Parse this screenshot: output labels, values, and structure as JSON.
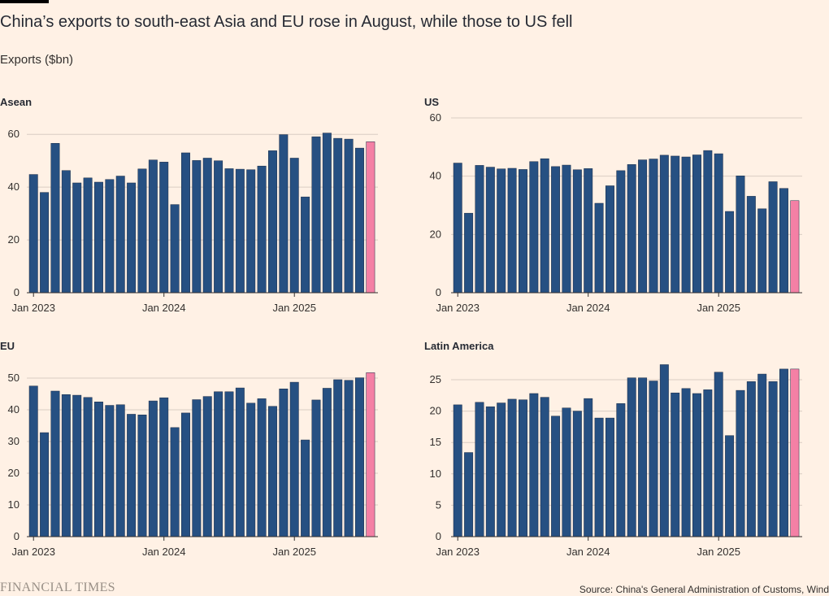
{
  "title": "China’s exports to south-east Asia and EU rose in August, while those to US fell",
  "subtitle": "Exports ($bn)",
  "brand": "FINANCIAL TIMES",
  "source": "Source: China's General Administration of Customs, Wind",
  "colors": {
    "bar": "#265082",
    "highlight": "#f480a5",
    "grid": "#d9cdc3",
    "axis": "#33302e",
    "text": "#33302e"
  },
  "chart_data": [
    {
      "type": "bar",
      "title": "Asean",
      "x_labels": [
        "Jan 2023",
        "Jan 2024",
        "Jan 2025"
      ],
      "yticks": [
        0,
        20,
        40,
        60
      ],
      "ylim": [
        0,
        61
      ],
      "highlight_last": true,
      "values": [
        44.8,
        38.0,
        56.6,
        46.3,
        41.6,
        43.5,
        41.9,
        42.9,
        44.2,
        41.6,
        46.9,
        50.3,
        49.5,
        33.4,
        53.0,
        50.1,
        51.0,
        50.0,
        47.0,
        46.8,
        46.6,
        48.0,
        53.8,
        59.9,
        51.0,
        36.3,
        59.1,
        60.5,
        58.5,
        58.2,
        54.8,
        57.2
      ]
    },
    {
      "type": "bar",
      "title": "US",
      "x_labels": [
        "Jan 2023",
        "Jan 2024",
        "Jan 2025"
      ],
      "yticks": [
        0,
        20,
        40,
        60
      ],
      "ylim": [
        0,
        60
      ],
      "highlight_last": true,
      "values": [
        44.5,
        27.3,
        43.7,
        43.1,
        42.5,
        42.7,
        42.3,
        45.0,
        46.0,
        43.3,
        43.8,
        42.2,
        42.6,
        30.7,
        36.7,
        41.9,
        44.0,
        45.6,
        45.9,
        47.2,
        46.9,
        46.6,
        47.3,
        48.8,
        47.7,
        27.9,
        40.1,
        33.1,
        28.8,
        38.1,
        35.8,
        31.6
      ]
    },
    {
      "type": "bar",
      "title": "EU",
      "x_labels": [
        "Jan 2023",
        "Jan 2024",
        "Jan 2025"
      ],
      "yticks": [
        0,
        10,
        20,
        30,
        40,
        50
      ],
      "ylim": [
        0,
        50
      ],
      "highlight_last": true,
      "values": [
        47.5,
        32.8,
        45.9,
        44.8,
        44.6,
        43.9,
        42.5,
        41.4,
        41.6,
        38.6,
        38.4,
        42.8,
        43.8,
        34.4,
        39.0,
        43.2,
        44.2,
        45.7,
        45.7,
        46.9,
        42.1,
        43.5,
        41.1,
        46.6,
        48.7,
        30.5,
        43.1,
        46.8,
        49.5,
        49.3,
        50.1,
        51.7
      ]
    },
    {
      "type": "bar",
      "title": "Latin America",
      "x_labels": [
        "Jan 2023",
        "Jan 2024",
        "Jan 2025"
      ],
      "yticks": [
        0,
        5,
        10,
        15,
        20,
        25
      ],
      "ylim": [
        0,
        25
      ],
      "highlight_last": true,
      "values": [
        21.0,
        13.4,
        21.4,
        20.7,
        21.3,
        21.9,
        21.8,
        22.8,
        22.2,
        19.2,
        20.5,
        20.0,
        22.0,
        18.9,
        18.9,
        21.2,
        25.3,
        25.3,
        24.8,
        27.4,
        22.9,
        23.6,
        22.8,
        23.4,
        26.2,
        16.1,
        23.3,
        24.7,
        25.9,
        24.7,
        26.7,
        26.7
      ]
    }
  ]
}
